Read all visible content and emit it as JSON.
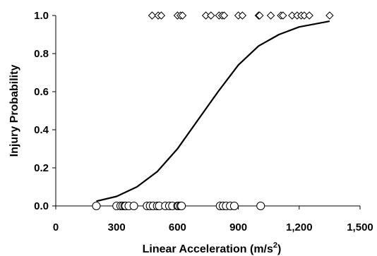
{
  "chart_data": {
    "type": "scatter",
    "xlabel": "Linear Acceleration (m/s2)",
    "xlabel_parts": {
      "main": "Linear Acceleration (m/s",
      "sup": "2",
      "end": ")"
    },
    "ylabel": "Injury Probability",
    "xlim": [
      0,
      1500
    ],
    "ylim": [
      0,
      1
    ],
    "x_ticks": [
      0,
      300,
      600,
      900,
      1200,
      1500
    ],
    "x_tick_labels": [
      "0",
      "300",
      "600",
      "900",
      "1,200",
      "1,500"
    ],
    "y_ticks": [
      0,
      0.2,
      0.4,
      0.6,
      0.8,
      1.0
    ],
    "y_tick_labels": [
      "0.0",
      "0.2",
      "0.4",
      "0.6",
      "0.8",
      "1.0"
    ],
    "grid": false,
    "series": [
      {
        "marker": "diamond",
        "y": 1,
        "x": [
          475,
          505,
          520,
          600,
          615,
          625,
          740,
          765,
          805,
          820,
          830,
          900,
          920,
          1000,
          1005,
          1060,
          1110,
          1120,
          1165,
          1190,
          1210,
          1225,
          1250,
          1350
        ]
      },
      {
        "marker": "circle",
        "y": 0,
        "x": [
          200,
          300,
          320,
          330,
          340,
          345,
          360,
          385,
          450,
          465,
          480,
          500,
          510,
          540,
          560,
          575,
          600,
          605,
          615,
          620,
          810,
          825,
          840,
          860,
          880,
          1010
        ]
      },
      {
        "type": "line",
        "curve": "logistic",
        "points": [
          [
            200,
            0.025
          ],
          [
            300,
            0.05
          ],
          [
            400,
            0.1
          ],
          [
            500,
            0.18
          ],
          [
            600,
            0.3
          ],
          [
            700,
            0.45
          ],
          [
            800,
            0.6
          ],
          [
            900,
            0.74
          ],
          [
            1000,
            0.84
          ],
          [
            1100,
            0.9
          ],
          [
            1200,
            0.94
          ],
          [
            1300,
            0.96
          ],
          [
            1350,
            0.97
          ]
        ]
      }
    ]
  }
}
